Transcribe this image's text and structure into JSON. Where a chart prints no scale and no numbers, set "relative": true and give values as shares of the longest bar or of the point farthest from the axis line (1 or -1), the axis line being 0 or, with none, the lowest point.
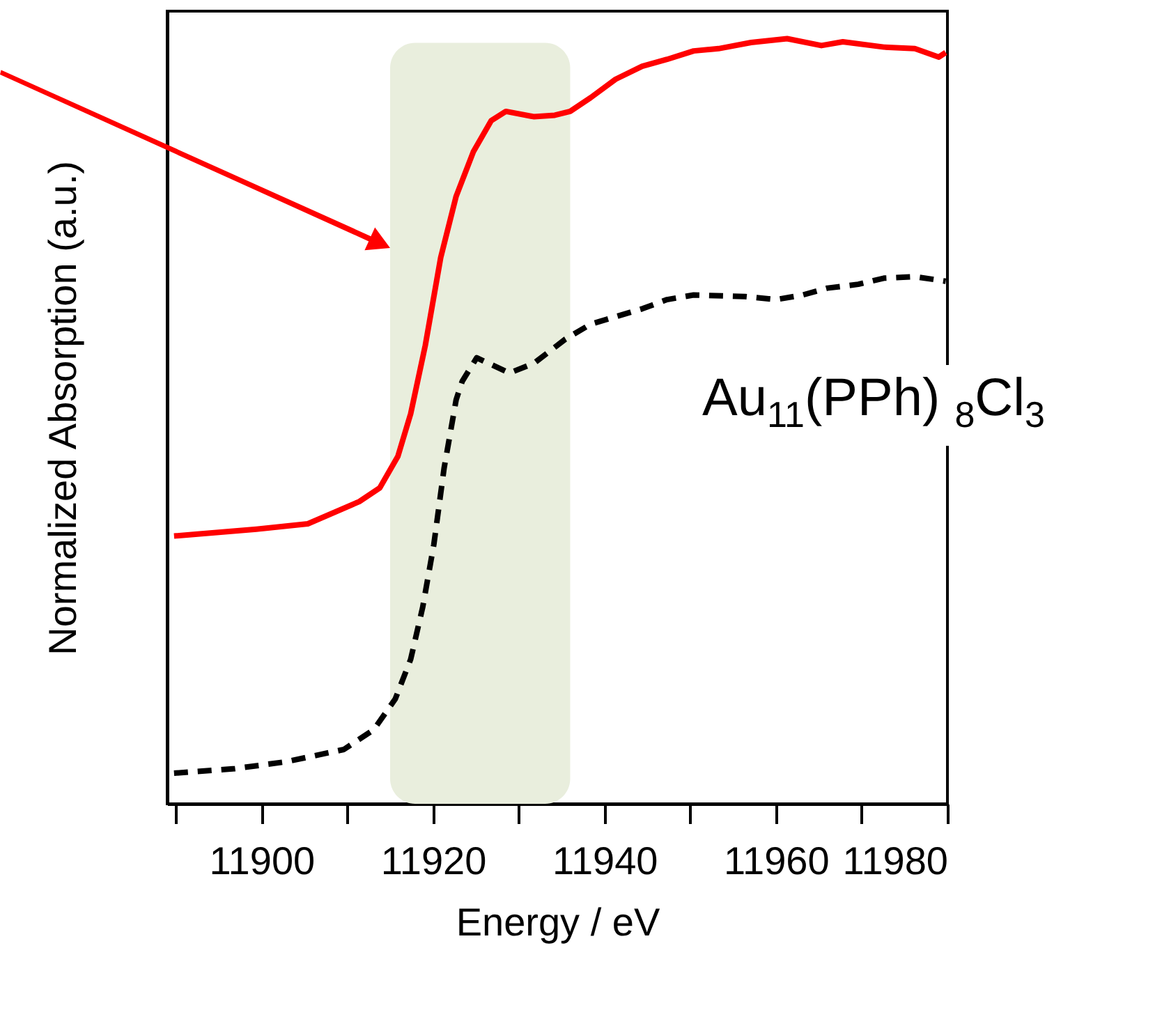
{
  "chart_data": {
    "type": "line",
    "xlabel": "Energy / eV",
    "ylabel": "Normalized Absorption (a.u.)",
    "relative": true,
    "xlim": [
      11889,
      11980
    ],
    "xticks": [
      {
        "value": 11890,
        "label": null
      },
      11900,
      {
        "value": 11910,
        "label": null
      },
      11920,
      {
        "value": 11930,
        "label": null
      },
      11940,
      {
        "value": 11950,
        "label": null
      },
      11960,
      {
        "value": 11970,
        "label": null
      },
      11980
    ],
    "series": [
      {
        "color": "#ff0000",
        "line_style": "solid",
        "x": [
          11889.8,
          11899.4,
          11905.4,
          11911.4,
          11913.8,
          11915.9,
          11917.4,
          11919.1,
          11920.9,
          11922.7,
          11924.7,
          11926.8,
          11928.5,
          11931.8,
          11934.2,
          11936.0,
          11938.4,
          11941.3,
          11944.4,
          11947.3,
          11950.4,
          11953.3,
          11957.1,
          11961.3,
          11965.3,
          11967.8,
          11972.6,
          11976.2,
          11979.0,
          11979.8
        ],
        "values": [
          0.35,
          0.359,
          0.366,
          0.395,
          0.413,
          0.454,
          0.51,
          0.599,
          0.714,
          0.794,
          0.852,
          0.893,
          0.905,
          0.898,
          0.9,
          0.905,
          0.923,
          0.947,
          0.964,
          0.973,
          0.984,
          0.987,
          0.995,
          1.0,
          0.991,
          0.996,
          0.989,
          0.987,
          0.976,
          0.982
        ]
      },
      {
        "color": "#000000",
        "line_style": "dashed",
        "x": [
          11889.8,
          11896.9,
          11902.9,
          11909.6,
          11913.1,
          11915.6,
          11917.4,
          11918.8,
          11920.1,
          11921.3,
          11922.7,
          11923.4,
          11925.1,
          11928.9,
          11931.8,
          11935.4,
          11938.4,
          11944.4,
          11947.3,
          11950.4,
          11956.4,
          11960.0,
          11963.1,
          11966.0,
          11969.6,
          11972.6,
          11976.2,
          11979.8
        ],
        "values": [
          0.04,
          0.046,
          0.055,
          0.071,
          0.097,
          0.137,
          0.189,
          0.257,
          0.339,
          0.439,
          0.528,
          0.552,
          0.583,
          0.563,
          0.576,
          0.607,
          0.627,
          0.647,
          0.659,
          0.665,
          0.663,
          0.659,
          0.665,
          0.674,
          0.679,
          0.687,
          0.689,
          0.683
        ]
      }
    ],
    "bands": [
      {
        "axis": "x",
        "from": 11915,
        "to": 11936,
        "color": "#e9eedd"
      }
    ],
    "annotations": [
      "Au$_{11}$(PPh) $_{8}$Cl$_{3}$"
    ]
  }
}
